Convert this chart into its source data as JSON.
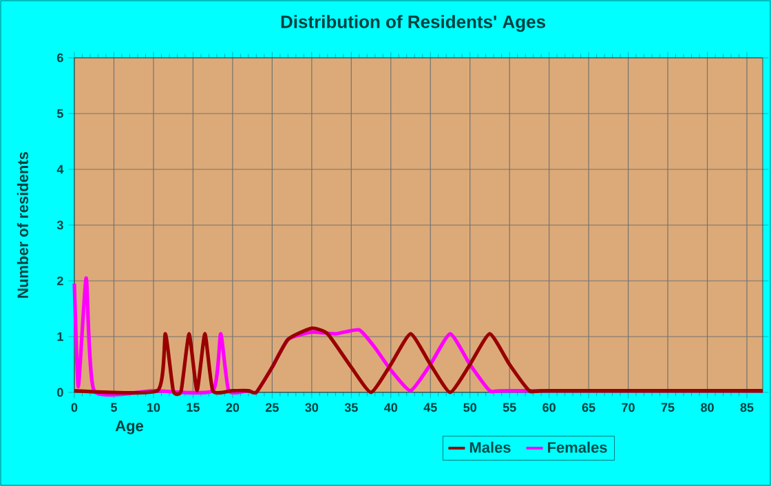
{
  "chart_data": {
    "type": "line",
    "title": "Distribution of Residents' Ages",
    "xlabel": "Age",
    "ylabel": "Number of residents",
    "xlim": [
      0,
      87
    ],
    "ylim": [
      0,
      6
    ],
    "xticks": [
      0,
      5,
      10,
      15,
      20,
      25,
      30,
      35,
      40,
      45,
      50,
      55,
      60,
      65,
      70,
      75,
      80,
      85
    ],
    "yticks": [
      0,
      1,
      2,
      3,
      4,
      5,
      6
    ],
    "grid": true,
    "legend": "bottom",
    "marker": "none",
    "line_style": "solid",
    "series": [
      {
        "name": "Males",
        "color": "#990000",
        "x": [
          0,
          10.5,
          11.5,
          12.5,
          13.5,
          14.5,
          15.5,
          16.5,
          17.5,
          20,
          22,
          23,
          25,
          27,
          30,
          32,
          35,
          37.5,
          40,
          42.5,
          45,
          47.5,
          50,
          52.5,
          55,
          57.5,
          60,
          87
        ],
        "values": [
          0.03,
          0.03,
          1.05,
          0.03,
          0.03,
          1.05,
          0.03,
          1.05,
          0.03,
          0.03,
          0.03,
          0,
          0.45,
          0.95,
          1.15,
          1.05,
          0.45,
          0,
          0.5,
          1.05,
          0.5,
          0,
          0.5,
          1.05,
          0.5,
          0.03,
          0.03,
          0.03
        ]
      },
      {
        "name": "Females",
        "color": "#ff00ff",
        "x": [
          0,
          0.5,
          1.5,
          2.5,
          10,
          17.5,
          18.5,
          19.5,
          22,
          23,
          25,
          27,
          30,
          33,
          36,
          38,
          40,
          42.5,
          45,
          47.5,
          50,
          52.5,
          55,
          87
        ],
        "values": [
          1.95,
          0.1,
          2.05,
          0.03,
          0.03,
          0.03,
          1.05,
          0.03,
          0.03,
          0,
          0.45,
          0.95,
          1.08,
          1.05,
          1.12,
          0.8,
          0.4,
          0.03,
          0.5,
          1.05,
          0.5,
          0.03,
          0.03,
          0.03
        ]
      }
    ]
  }
}
